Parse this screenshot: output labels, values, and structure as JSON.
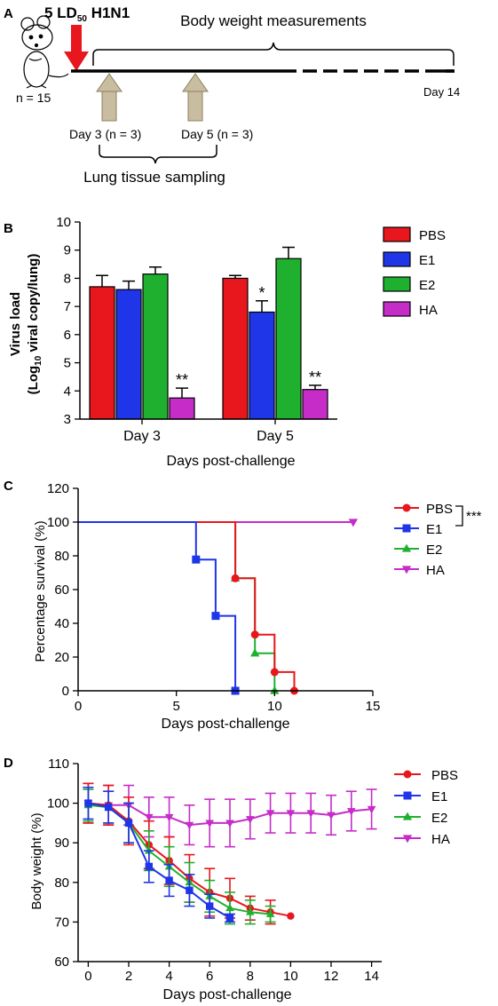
{
  "panel_a": {
    "label": "A",
    "dose_label": "5 LD",
    "dose_sub": "50",
    "virus": "H1N1",
    "n_label": "n = 15",
    "weight_label": "Body weight measurements",
    "day14_label": "Day 14",
    "day3_label": "Day 3 (n = 3)",
    "day5_label": "Day 5 (n = 3)",
    "sampling_label": "Lung tissue sampling",
    "colors": {
      "dose_arrow": "#e8161d",
      "sample_arrow": "#c8bda0"
    }
  },
  "chart_data": [
    {
      "panel": "B",
      "type": "bar",
      "categories": [
        "Day 3",
        "Day 5"
      ],
      "xlabel": "Days post-challenge",
      "ylabel_line1": "Virus load",
      "ylabel_line2_pre": "(Log",
      "ylabel_line2_sub": "10",
      "ylabel_line2_post": " viral copy/lung)",
      "ylim": [
        3,
        10
      ],
      "yticks": [
        3,
        4,
        5,
        6,
        7,
        8,
        9,
        10
      ],
      "legend_position": "right",
      "series": [
        {
          "name": "PBS",
          "color": "#e8161d",
          "values": [
            7.7,
            8.0
          ],
          "errors": [
            0.4,
            0.1
          ],
          "marks": [
            "",
            ""
          ]
        },
        {
          "name": "E1",
          "color": "#1f35e8",
          "values": [
            7.6,
            6.8
          ],
          "errors": [
            0.3,
            0.4
          ],
          "marks": [
            "",
            "*"
          ]
        },
        {
          "name": "E2",
          "color": "#1fb02f",
          "values": [
            8.15,
            8.7
          ],
          "errors": [
            0.25,
            0.4
          ],
          "marks": [
            "",
            ""
          ]
        },
        {
          "name": "HA",
          "color": "#c52cc8",
          "values": [
            3.75,
            4.05
          ],
          "errors": [
            0.35,
            0.15
          ],
          "marks": [
            "**",
            "**"
          ]
        }
      ]
    },
    {
      "panel": "C",
      "type": "line",
      "subtype": "survival-step",
      "xlabel": "Days post-challenge",
      "ylabel": "Percentage survival (%)",
      "xlim": [
        0,
        15
      ],
      "ylim": [
        0,
        120
      ],
      "xticks": [
        0,
        5,
        10,
        15
      ],
      "yticks": [
        0,
        20,
        40,
        60,
        80,
        100,
        120
      ],
      "significance": "***",
      "legend_position": "right",
      "series": [
        {
          "name": "PBS",
          "color": "#e8161d",
          "marker": "circle",
          "steps": [
            [
              0,
              100
            ],
            [
              8,
              100
            ],
            [
              8,
              66.7
            ],
            [
              9,
              66.7
            ],
            [
              9,
              33.3
            ],
            [
              10,
              33.3
            ],
            [
              10,
              11.1
            ],
            [
              11,
              11.1
            ],
            [
              11,
              0
            ]
          ],
          "points": [
            [
              8,
              66.7
            ],
            [
              9,
              33.3
            ],
            [
              10,
              11.1
            ],
            [
              11,
              0
            ]
          ]
        },
        {
          "name": "E1",
          "color": "#1f35e8",
          "marker": "square",
          "steps": [
            [
              0,
              100
            ],
            [
              6,
              100
            ],
            [
              6,
              77.8
            ],
            [
              7,
              77.8
            ],
            [
              7,
              44.4
            ],
            [
              8,
              44.4
            ],
            [
              8,
              0
            ]
          ],
          "points": [
            [
              6,
              77.8
            ],
            [
              7,
              44.4
            ],
            [
              8,
              0
            ]
          ]
        },
        {
          "name": "E2",
          "color": "#1fb02f",
          "marker": "triangle",
          "steps": [
            [
              0,
              100
            ],
            [
              8,
              100
            ],
            [
              8,
              66.7
            ],
            [
              9,
              66.7
            ],
            [
              9,
              22.2
            ],
            [
              10,
              22.2
            ],
            [
              10,
              0
            ]
          ],
          "points": [
            [
              8,
              66.7
            ],
            [
              9,
              22.2
            ],
            [
              10,
              0
            ]
          ]
        },
        {
          "name": "HA",
          "color": "#c52cc8",
          "marker": "triangle-down",
          "steps": [
            [
              0,
              100
            ],
            [
              14,
              100
            ]
          ],
          "points": [
            [
              14,
              100
            ]
          ]
        }
      ]
    },
    {
      "panel": "D",
      "type": "line",
      "xlabel": "Days post-challenge",
      "ylabel": "Body weight (%)",
      "xlim": [
        -0.5,
        14.5
      ],
      "ylim": [
        60,
        110
      ],
      "xticks": [
        0,
        2,
        4,
        6,
        8,
        10,
        12,
        14
      ],
      "yticks": [
        60,
        70,
        80,
        90,
        100,
        110
      ],
      "legend_position": "right",
      "series": [
        {
          "name": "PBS",
          "color": "#e8161d",
          "marker": "circle",
          "x": [
            0,
            1,
            2,
            3,
            4,
            5,
            6,
            7,
            8,
            9,
            10
          ],
          "y": [
            100,
            99.5,
            95.5,
            89.5,
            85.5,
            81,
            77.5,
            76,
            73.5,
            72.5,
            71.5
          ],
          "err": [
            5,
            5,
            6,
            6,
            6,
            6,
            6,
            5,
            3,
            3,
            0
          ]
        },
        {
          "name": "E1",
          "color": "#1f35e8",
          "marker": "square",
          "x": [
            0,
            1,
            2,
            3,
            4,
            5,
            6,
            7
          ],
          "y": [
            100,
            99,
            95,
            84,
            80.5,
            78,
            74,
            71
          ],
          "err": [
            4,
            4,
            5,
            4,
            4,
            4,
            3,
            1
          ]
        },
        {
          "name": "E2",
          "color": "#1fb02f",
          "marker": "triangle",
          "x": [
            0,
            1,
            2,
            3,
            4,
            5,
            6,
            7,
            8,
            9
          ],
          "y": [
            99.5,
            99,
            95,
            88,
            84,
            80,
            76.5,
            73.5,
            72.5,
            72
          ],
          "err": [
            4,
            4,
            5,
            5,
            5,
            5,
            4,
            4,
            3,
            2
          ]
        },
        {
          "name": "HA",
          "color": "#c52cc8",
          "marker": "triangle-down",
          "x": [
            0,
            1,
            2,
            3,
            4,
            5,
            6,
            7,
            8,
            9,
            10,
            11,
            12,
            13,
            14
          ],
          "y": [
            100,
            99.5,
            99.5,
            96.5,
            96.5,
            94.5,
            95,
            95,
            96,
            97.5,
            97.5,
            97.5,
            97,
            98,
            98.5
          ],
          "err": [
            5,
            5,
            5,
            5,
            5,
            5,
            6,
            6,
            5,
            5,
            5,
            5,
            5,
            5,
            5
          ]
        }
      ]
    }
  ]
}
